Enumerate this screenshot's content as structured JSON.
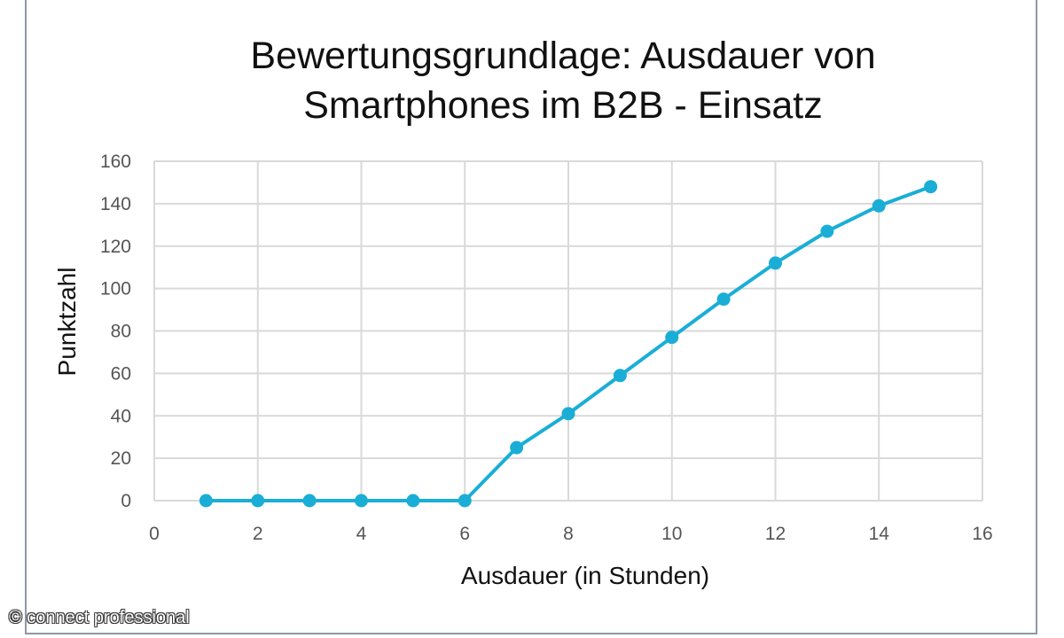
{
  "chart_data": {
    "type": "line",
    "title_lines": [
      "Bewertungsgrundlage: Ausdauer von",
      "Smartphones im B2B - Einsatz"
    ],
    "xlabel": "Ausdauer (in Stunden)",
    "ylabel": "Punktzahl",
    "xlim": [
      0,
      16
    ],
    "ylim": [
      0,
      160
    ],
    "xticks": [
      0,
      2,
      4,
      6,
      8,
      10,
      12,
      14,
      16
    ],
    "yticks": [
      0,
      20,
      40,
      60,
      80,
      100,
      120,
      140,
      160
    ],
    "grid": true,
    "series": [
      {
        "name": "Punktzahl",
        "color": "#1aaed6",
        "x": [
          1,
          2,
          3,
          4,
          5,
          6,
          7,
          8,
          9,
          10,
          11,
          12,
          13,
          14,
          15
        ],
        "y": [
          0,
          0,
          0,
          0,
          0,
          0,
          25,
          41,
          59,
          77,
          95,
          112,
          127,
          139,
          148
        ]
      }
    ]
  },
  "watermark": "© connect professional"
}
